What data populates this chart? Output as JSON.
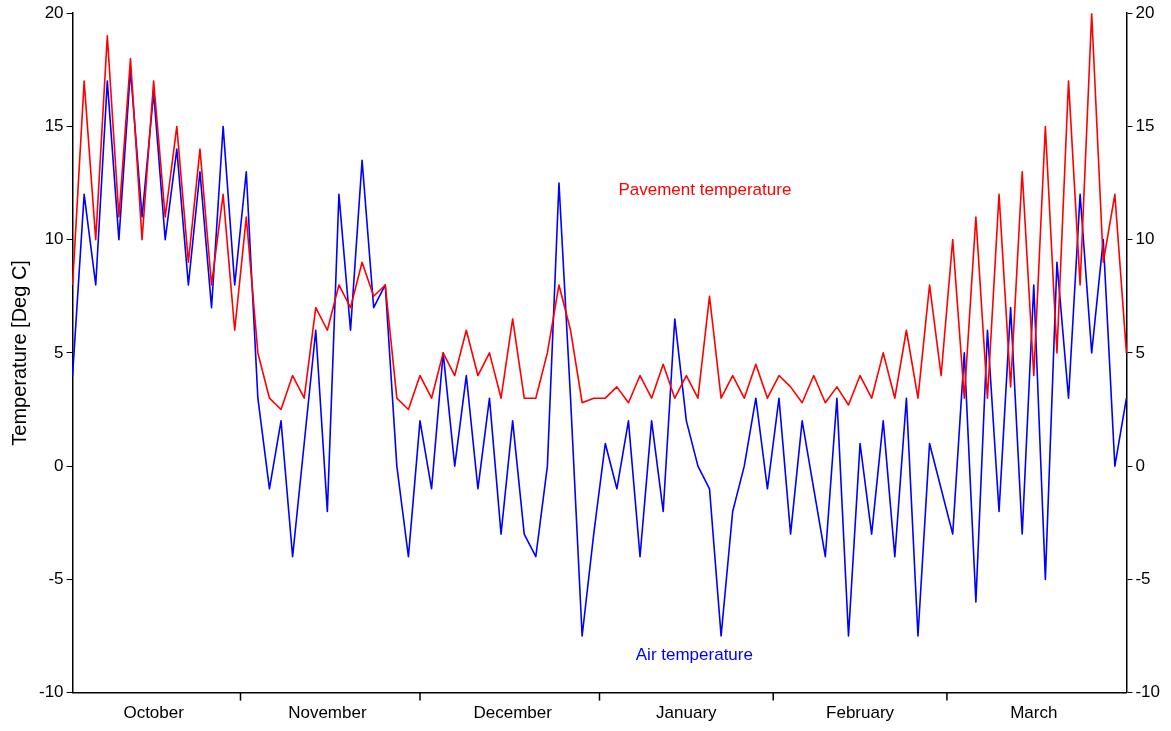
{
  "chart_data": {
    "type": "line",
    "ylabel": "Temperature [Deg C]",
    "categories": [
      null,
      null,
      null,
      null,
      null,
      null,
      null,
      "October",
      null,
      null,
      null,
      null,
      null,
      null,
      null,
      null,
      null,
      null,
      null,
      null,
      null,
      null,
      "November",
      null,
      null,
      null,
      null,
      null,
      null,
      null,
      null,
      null,
      null,
      null,
      null,
      null,
      null,
      null,
      "December",
      null,
      null,
      null,
      null,
      null,
      null,
      null,
      null,
      null,
      null,
      null,
      null,
      null,
      null,
      "January",
      null,
      null,
      null,
      null,
      null,
      null,
      null,
      null,
      null,
      null,
      null,
      null,
      null,
      null,
      "February",
      null,
      null,
      null,
      null,
      null,
      null,
      null,
      null,
      null,
      null,
      null,
      null,
      null,
      null,
      "March",
      null,
      null,
      null,
      null,
      null,
      null,
      null,
      null
    ],
    "series": [
      {
        "name": "Pavement temperature",
        "color": "#ff0000",
        "values": [
          8,
          17,
          10,
          19,
          11,
          18,
          10,
          17,
          11,
          15,
          9,
          14,
          8,
          12,
          6,
          11,
          5,
          3,
          2.5,
          4,
          3,
          7,
          6,
          8,
          7,
          9,
          7.5,
          8,
          3,
          2.5,
          4,
          3,
          5,
          4,
          6,
          4,
          5,
          3,
          6.5,
          3,
          3,
          5,
          8,
          6,
          2.8,
          3,
          3,
          3.5,
          2.8,
          4,
          3,
          4.5,
          3,
          4,
          3,
          7.5,
          3,
          4,
          3,
          4.5,
          3,
          4,
          3.5,
          2.8,
          4,
          2.8,
          3.5,
          2.7,
          4,
          3,
          5,
          3,
          6,
          3,
          8,
          4,
          10,
          3,
          11,
          3,
          12,
          3.5,
          13,
          4,
          15,
          5,
          17,
          8,
          20,
          9,
          12,
          5
        ]
      },
      {
        "name": "Air temperature",
        "color": "#0000ff",
        "values": [
          4,
          12,
          8,
          17,
          10,
          17.5,
          11,
          16.5,
          10,
          14,
          8,
          13,
          7,
          15,
          8,
          13,
          3,
          -1,
          2,
          -4,
          1,
          6,
          -2,
          12,
          6,
          13.5,
          7,
          8,
          0,
          -4,
          2,
          -1,
          5,
          0,
          4,
          -1,
          3,
          -3,
          2,
          -3,
          -4,
          0,
          12.5,
          3,
          -7.5,
          -3,
          1,
          -1,
          2,
          -4,
          2,
          -2,
          6.5,
          2,
          0,
          -1,
          -7.5,
          -2,
          0,
          3,
          -1,
          3,
          -3,
          2,
          -1,
          -4,
          3,
          -7.5,
          1,
          -3,
          2,
          -4,
          3,
          -7.5,
          1,
          -1,
          -3,
          5,
          -6,
          6,
          -2,
          7,
          -3,
          8,
          -5,
          9,
          3,
          12,
          5,
          10,
          0,
          3
        ]
      }
    ],
    "ylim": [
      -10,
      20
    ],
    "yticks": [
      -10,
      -5,
      0,
      5,
      10,
      15,
      20
    ],
    "y2lim": [
      -10,
      20
    ],
    "y2ticks": [
      -10,
      -5,
      0,
      5,
      10,
      15,
      20
    ],
    "grid": false,
    "legend": false
  }
}
